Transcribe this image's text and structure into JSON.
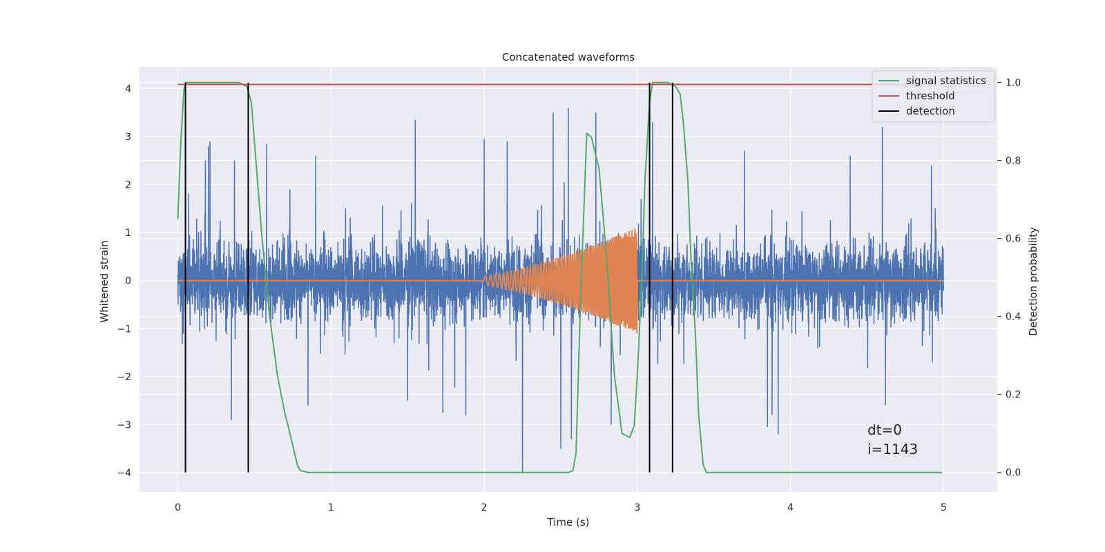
{
  "chart_data": {
    "type": "line",
    "title": "Concatenated waveforms",
    "xlabel": "Time (s)",
    "ylabel": "Whitened strain",
    "ylabel_right": "Detection probability",
    "xlim": [
      -0.25,
      5.35
    ],
    "ylim": [
      -4.4,
      4.45
    ],
    "ylim_right": [
      -0.05,
      1.04
    ],
    "x_ticks": [
      0,
      1,
      2,
      3,
      4,
      5
    ],
    "x_tick_labels": [
      "0",
      "1",
      "2",
      "3",
      "4",
      "5"
    ],
    "y_ticks": [
      -4,
      -3,
      -2,
      -1,
      0,
      1,
      2,
      3,
      4
    ],
    "y_tick_labels": [
      "−4",
      "−3",
      "−2",
      "−1",
      "0",
      "1",
      "2",
      "3",
      "4"
    ],
    "y_right_ticks": [
      0.0,
      0.2,
      0.4,
      0.6,
      0.8,
      1.0
    ],
    "y_right_tick_labels": [
      "0.0",
      "0.2",
      "0.4",
      "0.6",
      "0.8",
      "1.0"
    ],
    "grid": true,
    "legend": {
      "position": "top-right",
      "entries": [
        "signal statistics",
        "threshold",
        "detection"
      ]
    },
    "annotations": {
      "dt": "dt=0",
      "i": "i=1143"
    },
    "series": [
      {
        "role": "whitened strain noise",
        "axis": "left",
        "color": "#4c72b0",
        "x_range": [
          0,
          5
        ],
        "typical_amplitude": 0.75,
        "peaks": [
          {
            "x": 0.18,
            "y": 2.5
          },
          {
            "x": 0.2,
            "y": 2.8
          },
          {
            "x": 0.21,
            "y": -2.55
          },
          {
            "x": 0.21,
            "y": 2.9
          },
          {
            "x": 0.37,
            "y": 2.5
          },
          {
            "x": 0.35,
            "y": -2.9
          },
          {
            "x": 0.58,
            "y": 2.85
          },
          {
            "x": 0.85,
            "y": -2.6
          },
          {
            "x": 0.9,
            "y": 2.6
          },
          {
            "x": 1.55,
            "y": 3.35
          },
          {
            "x": 1.5,
            "y": -2.5
          },
          {
            "x": 1.73,
            "y": -2.75
          },
          {
            "x": 1.88,
            "y": -2.8
          },
          {
            "x": 2.0,
            "y": 2.95
          },
          {
            "x": 2.15,
            "y": 2.9
          },
          {
            "x": 2.25,
            "y": 3.5
          },
          {
            "x": 2.25,
            "y": -4.0
          },
          {
            "x": 2.45,
            "y": 3.5
          },
          {
            "x": 2.5,
            "y": -3.5
          },
          {
            "x": 2.55,
            "y": 4.05
          },
          {
            "x": 2.55,
            "y": 3.6
          },
          {
            "x": 2.57,
            "y": -3.3
          },
          {
            "x": 2.73,
            "y": 3.5
          },
          {
            "x": 2.83,
            "y": -3.0
          },
          {
            "x": 3.1,
            "y": 3.3
          },
          {
            "x": 3.7,
            "y": 2.7
          },
          {
            "x": 3.85,
            "y": -3.05
          },
          {
            "x": 3.88,
            "y": -2.8
          },
          {
            "x": 3.92,
            "y": -3.2
          },
          {
            "x": 4.39,
            "y": 2.6
          },
          {
            "x": 4.6,
            "y": 3.2
          },
          {
            "x": 4.62,
            "y": -2.6
          },
          {
            "x": 4.92,
            "y": 2.4
          }
        ]
      },
      {
        "role": "injected chirp",
        "axis": "left",
        "color": "#dd8452",
        "x_range": [
          0,
          5
        ],
        "chirp_start": 2.0,
        "chirp_end": 3.0,
        "start_amplitude": 0.1,
        "end_amplitude": 1.1
      },
      {
        "name": "signal statistics",
        "axis": "right",
        "color": "#55a868",
        "x": [
          0.0,
          0.02,
          0.04,
          0.05,
          0.07,
          0.1,
          0.2,
          0.3,
          0.4,
          0.45,
          0.48,
          0.5,
          0.55,
          0.6,
          0.65,
          0.7,
          0.72,
          0.75,
          0.78,
          0.8,
          0.85,
          1.0,
          2.5,
          2.55,
          2.58,
          2.6,
          2.63,
          2.67,
          2.7,
          2.75,
          2.8,
          2.85,
          2.9,
          2.95,
          2.98,
          3.0,
          3.03,
          3.05,
          3.08,
          3.1,
          3.15,
          3.2,
          3.25,
          3.28,
          3.3,
          3.33,
          3.35,
          3.38,
          3.4,
          3.43,
          3.45,
          3.5,
          4.99
        ],
        "y": [
          0.65,
          0.85,
          0.98,
          1.0,
          1.0,
          1.0,
          1.0,
          1.0,
          1.0,
          0.99,
          0.95,
          0.85,
          0.6,
          0.4,
          0.25,
          0.15,
          0.12,
          0.07,
          0.02,
          0.005,
          0.0,
          0.0,
          0.0,
          0.0,
          0.005,
          0.05,
          0.45,
          0.87,
          0.86,
          0.78,
          0.55,
          0.25,
          0.1,
          0.09,
          0.12,
          0.25,
          0.5,
          0.75,
          0.95,
          1.0,
          1.0,
          1.0,
          0.99,
          0.97,
          0.9,
          0.75,
          0.55,
          0.35,
          0.15,
          0.02,
          0.0,
          0.0,
          0.0
        ]
      },
      {
        "name": "threshold",
        "axis": "right",
        "color": "#c44e52",
        "x": [
          0,
          5
        ],
        "y": [
          0.995,
          0.995
        ]
      },
      {
        "name": "detection",
        "axis": "right",
        "color": "#000000",
        "x": [
          0.05,
          0.46,
          3.08,
          3.23
        ],
        "y_range": [
          0.0,
          1.0
        ]
      }
    ]
  }
}
